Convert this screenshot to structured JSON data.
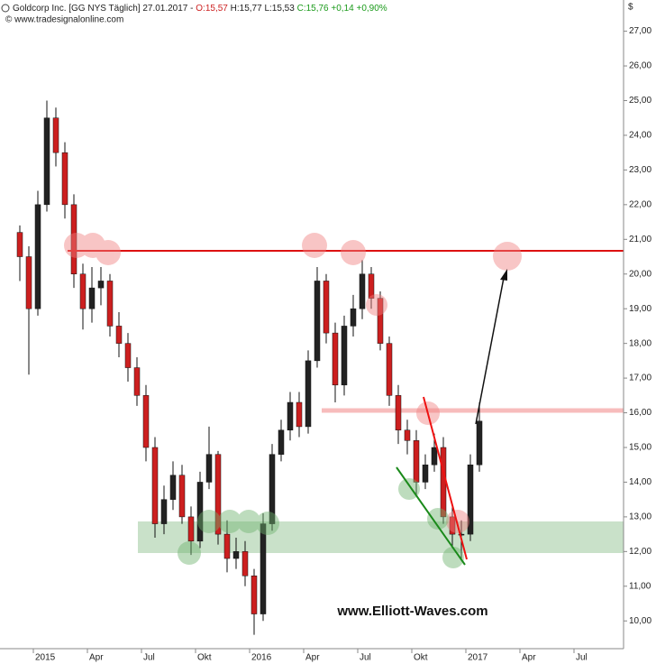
{
  "chart_data": {
    "type": "candlestick",
    "title": "Goldcorp Inc. [GG NYS  Täglich] 27.01.2017 -",
    "quote_open": "O:15,57",
    "quote_high_low": "H:15,77 L:15,53",
    "quote_close": "C:15,76 +0,14 +0,90%",
    "subtitle": "© www.tradesignalonline.com",
    "watermark": "www.Elliott-Waves.com",
    "y_axis_label": "$",
    "up_color": "#222222",
    "down_color": "#cc1f1f",
    "categories": [
      null,
      null,
      "2015",
      null,
      null,
      null,
      null,
      null,
      "Apr",
      null,
      null,
      null,
      null,
      null,
      "Jul",
      null,
      null,
      null,
      null,
      null,
      "Okt",
      null,
      null,
      null,
      null,
      null,
      "2016",
      null,
      null,
      null,
      null,
      null,
      "Apr",
      null,
      null,
      null,
      null,
      null,
      "Jul",
      null,
      null,
      null,
      null,
      null,
      "Okt",
      null,
      null,
      null,
      null,
      null,
      "2017",
      null,
      null,
      null,
      null,
      null,
      "Apr",
      null,
      null,
      null,
      null,
      null,
      "Jul",
      null,
      null,
      null,
      null
    ],
    "open": [
      21.2,
      20.5,
      19.0,
      22.0,
      24.5,
      23.5,
      22.0,
      20.0,
      19.0,
      19.6,
      19.8,
      18.5,
      18.0,
      17.3,
      16.5,
      15.0,
      12.8,
      13.5,
      14.2,
      13.0,
      12.3,
      14.0,
      14.8,
      12.5,
      11.8,
      12.0,
      11.3,
      10.2,
      12.8,
      14.8,
      15.5,
      16.3,
      15.6,
      17.5,
      19.8,
      18.3,
      16.8,
      18.5,
      19.0,
      20.0,
      19.3,
      18.0,
      16.5,
      15.5,
      15.2,
      14.0,
      14.5,
      15.0,
      13.0,
      12.5,
      12.5,
      14.5,
      null,
      null,
      null,
      null,
      null,
      null,
      null,
      null,
      null,
      null,
      null,
      null,
      null,
      null,
      null
    ],
    "high": [
      21.4,
      20.8,
      22.4,
      25.0,
      24.8,
      23.8,
      22.3,
      20.3,
      20.2,
      20.2,
      20.0,
      18.9,
      18.3,
      17.6,
      16.8,
      15.3,
      13.9,
      14.6,
      14.5,
      13.3,
      14.3,
      15.6,
      14.9,
      12.9,
      12.4,
      12.3,
      11.5,
      13.1,
      15.1,
      15.8,
      16.6,
      16.6,
      17.8,
      20.2,
      20.0,
      18.6,
      18.8,
      19.4,
      20.4,
      20.2,
      19.5,
      18.2,
      16.8,
      15.8,
      15.5,
      14.8,
      15.4,
      15.3,
      13.3,
      12.9,
      14.8,
      16.3,
      null,
      null,
      null,
      null,
      null,
      null,
      null,
      null,
      null,
      null,
      null,
      null,
      null,
      null,
      null
    ],
    "low": [
      19.8,
      17.1,
      18.8,
      21.8,
      23.1,
      21.6,
      19.6,
      18.4,
      18.6,
      19.1,
      18.2,
      17.6,
      16.9,
      16.2,
      14.6,
      12.4,
      12.5,
      13.2,
      12.8,
      11.9,
      12.1,
      13.8,
      12.2,
      11.4,
      11.5,
      11.0,
      9.6,
      10.0,
      12.6,
      14.6,
      15.2,
      15.3,
      15.4,
      17.3,
      18.0,
      16.3,
      16.5,
      18.2,
      18.7,
      19.0,
      17.8,
      16.2,
      15.1,
      14.8,
      13.6,
      13.8,
      14.3,
      12.8,
      12.1,
      11.8,
      12.3,
      14.3,
      null,
      null,
      null,
      null,
      null,
      null,
      null,
      null,
      null,
      null,
      null,
      null,
      null,
      null,
      null
    ],
    "close": [
      20.5,
      19.0,
      22.0,
      24.5,
      23.5,
      22.0,
      20.0,
      19.0,
      19.6,
      19.8,
      18.5,
      18.0,
      17.3,
      16.5,
      15.0,
      12.8,
      13.5,
      14.2,
      13.0,
      12.3,
      14.0,
      14.8,
      12.5,
      11.8,
      12.0,
      11.3,
      10.2,
      12.8,
      14.8,
      15.5,
      16.3,
      15.6,
      17.5,
      19.8,
      18.3,
      16.8,
      18.5,
      19.0,
      20.0,
      19.3,
      18.0,
      16.5,
      15.5,
      15.2,
      14.0,
      14.5,
      15.0,
      13.0,
      12.5,
      12.5,
      14.5,
      15.76,
      null,
      null,
      null,
      null,
      null,
      null,
      null,
      null,
      null,
      null,
      null,
      null,
      null,
      null,
      null
    ],
    "ylim": [
      9.2,
      27.9
    ],
    "yticks": [
      {
        "value": 10,
        "label": "10,00"
      },
      {
        "value": 11,
        "label": "11,00"
      },
      {
        "value": 12,
        "label": "12,00"
      },
      {
        "value": 13,
        "label": "13,00"
      },
      {
        "value": 14,
        "label": "14,00"
      },
      {
        "value": 15,
        "label": "15,00"
      },
      {
        "value": 16,
        "label": "16,00"
      },
      {
        "value": 17,
        "label": "17,00"
      },
      {
        "value": 18,
        "label": "18,00"
      },
      {
        "value": 19,
        "label": "19,00"
      },
      {
        "value": 20,
        "label": "20,00"
      },
      {
        "value": 21,
        "label": "21,00"
      },
      {
        "value": 22,
        "label": "22,00"
      },
      {
        "value": 23,
        "label": "23,00"
      },
      {
        "value": 24,
        "label": "24,00"
      },
      {
        "value": 25,
        "label": "25,00"
      },
      {
        "value": 26,
        "label": "26,00"
      },
      {
        "value": 27,
        "label": "27,00"
      }
    ],
    "grid": false
  }
}
